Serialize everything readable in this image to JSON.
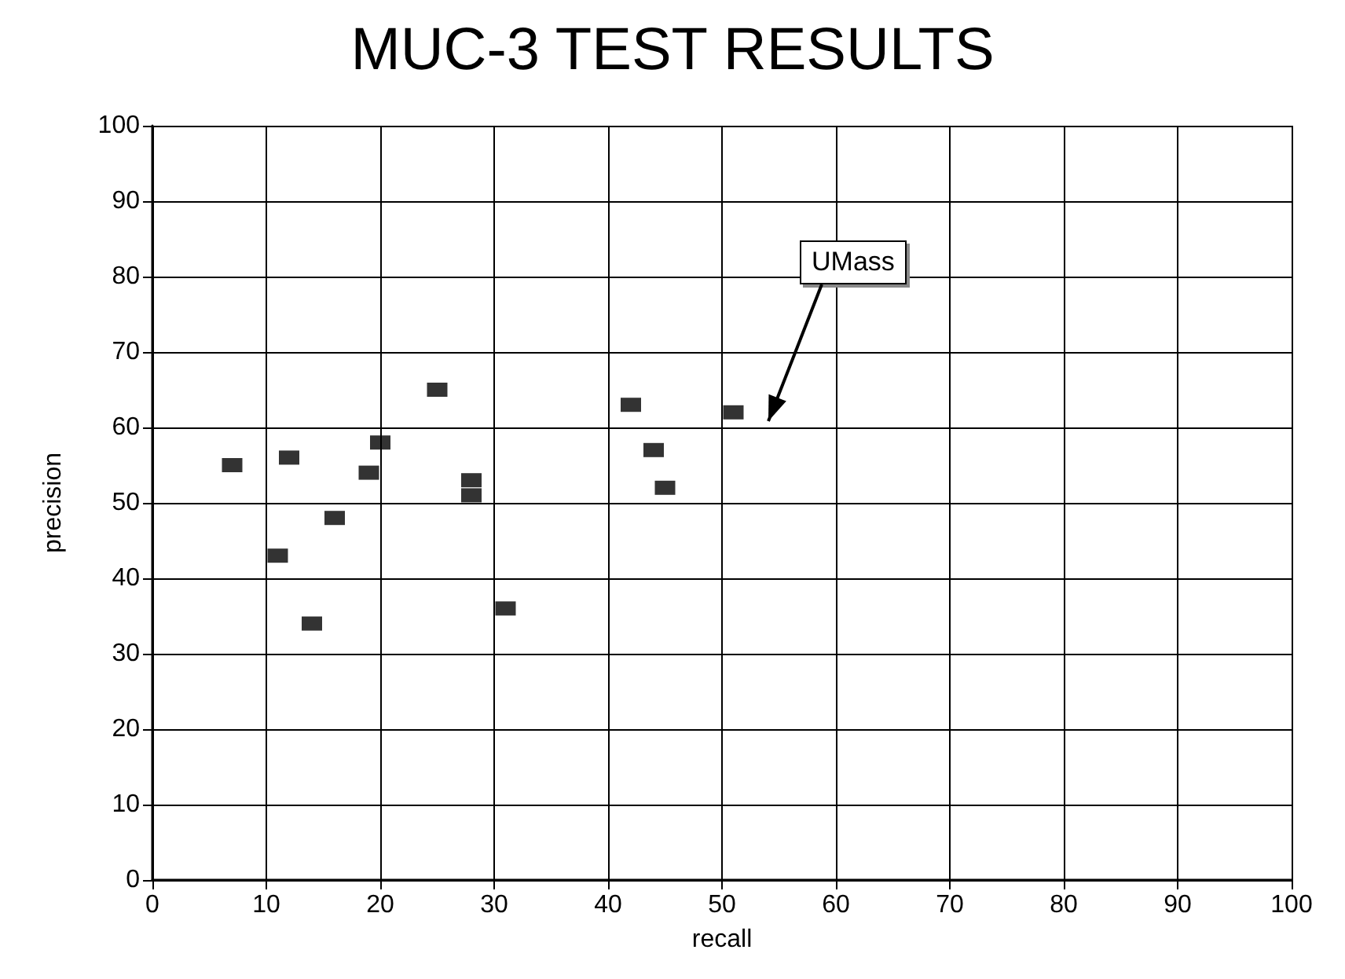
{
  "chart_data": {
    "type": "scatter",
    "title": "MUC-3 TEST RESULTS",
    "xlabel": "recall",
    "ylabel": "precision",
    "x": [
      7,
      11,
      12,
      14,
      16,
      19,
      20,
      25,
      28,
      28,
      31,
      42,
      44,
      45,
      51
    ],
    "values": [
      55,
      43,
      56,
      34,
      48,
      54,
      58,
      65,
      53,
      51,
      36,
      63,
      57,
      52,
      62
    ],
    "color": "#000000",
    "marker": "square",
    "xlim": [
      0,
      100
    ],
    "xticks": [
      0,
      10,
      20,
      30,
      40,
      50,
      60,
      70,
      80,
      90,
      100
    ],
    "ylim": [
      0,
      100
    ],
    "yticks": [
      0,
      10,
      20,
      30,
      40,
      50,
      60,
      70,
      80,
      90,
      100
    ],
    "grid": true,
    "annotations": [
      "UMass"
    ]
  }
}
